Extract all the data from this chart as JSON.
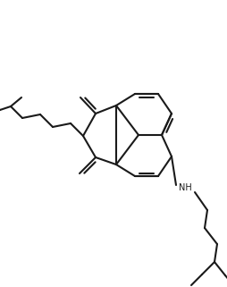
{
  "background": "#ffffff",
  "line_color": "#1a1a1a",
  "lw": 1.4,
  "figw": 2.54,
  "figh": 3.21,
  "dpi": 100
}
